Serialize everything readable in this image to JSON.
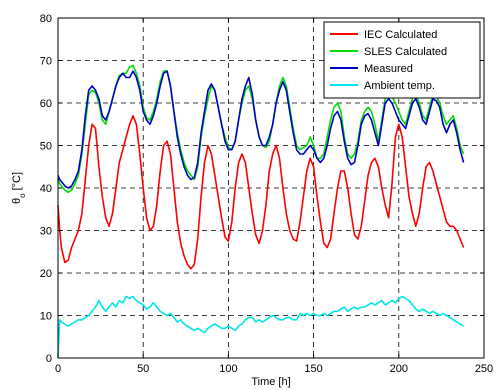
{
  "chart_data": {
    "type": "line",
    "xlabel": "Time [h]",
    "ylabel_main": "θ",
    "ylabel_sub": "o",
    "ylabel_unit": " [°C]",
    "xlim": [
      0,
      250
    ],
    "ylim": [
      0,
      80
    ],
    "xticks": [
      0,
      50,
      100,
      150,
      200,
      250
    ],
    "yticks": [
      0,
      10,
      20,
      30,
      40,
      50,
      60,
      70,
      80
    ],
    "grid": true,
    "legend_position": "top-right",
    "series": [
      {
        "name": "IEC Calculated",
        "color": "#ff0000",
        "x": [
          0,
          1,
          2,
          4,
          6,
          8,
          10,
          12,
          14,
          16,
          18,
          20,
          22,
          24,
          26,
          28,
          30,
          32,
          34,
          36,
          38,
          40,
          42,
          44,
          46,
          48,
          50,
          52,
          54,
          56,
          58,
          60,
          62,
          64,
          66,
          68,
          70,
          72,
          74,
          76,
          78,
          80,
          82,
          84,
          86,
          88,
          90,
          92,
          94,
          96,
          98,
          100,
          102,
          104,
          106,
          108,
          110,
          112,
          114,
          116,
          118,
          120,
          122,
          124,
          126,
          128,
          130,
          132,
          134,
          136,
          138,
          140,
          142,
          144,
          146,
          148,
          150,
          152,
          154,
          156,
          158,
          160,
          162,
          164,
          166,
          168,
          170,
          172,
          174,
          176,
          178,
          180,
          182,
          184,
          186,
          188,
          190,
          192,
          194,
          196,
          198,
          200,
          202,
          204,
          206,
          208,
          210,
          212,
          214,
          216,
          218,
          220,
          222,
          224,
          226,
          228,
          230,
          232,
          234,
          236,
          238
        ],
        "y": [
          36,
          30,
          26,
          22.5,
          23,
          26,
          28,
          30,
          34,
          42,
          50,
          55,
          54,
          45,
          38,
          33,
          31,
          34,
          40,
          46,
          49,
          52,
          55,
          57,
          55,
          48,
          40,
          33,
          30,
          31,
          36,
          44,
          50,
          51,
          48,
          40,
          32,
          27,
          24,
          22,
          21,
          22,
          28,
          38,
          46,
          50,
          48,
          43,
          38,
          33,
          28.5,
          27.5,
          32,
          40,
          46,
          48,
          46,
          40,
          34,
          29,
          27,
          30,
          36,
          44,
          48,
          50,
          47,
          40,
          34,
          30,
          28,
          27.5,
          32,
          38,
          44,
          47,
          45,
          38,
          32,
          27,
          26,
          28,
          34,
          40,
          44,
          44,
          40,
          34,
          29,
          28,
          31,
          37,
          43,
          46,
          47,
          45,
          40,
          36,
          33,
          41,
          52,
          55,
          52,
          45,
          38,
          34,
          31,
          34,
          40,
          45,
          46,
          44,
          41,
          38,
          35,
          32,
          31,
          31,
          30,
          28,
          26
        ]
      },
      {
        "name": "SLES Calculated",
        "color": "#00dd00",
        "x": [
          0,
          1,
          2,
          4,
          6,
          8,
          10,
          12,
          14,
          16,
          18,
          20,
          22,
          24,
          26,
          28,
          30,
          32,
          34,
          36,
          38,
          40,
          42,
          44,
          46,
          48,
          50,
          52,
          54,
          56,
          58,
          60,
          62,
          64,
          66,
          68,
          70,
          72,
          74,
          76,
          78,
          80,
          82,
          84,
          86,
          88,
          90,
          92,
          94,
          96,
          98,
          100,
          102,
          104,
          106,
          108,
          110,
          112,
          114,
          116,
          118,
          120,
          122,
          124,
          126,
          128,
          130,
          132,
          134,
          136,
          138,
          140,
          142,
          144,
          146,
          148,
          150,
          152,
          154,
          156,
          158,
          160,
          162,
          164,
          166,
          168,
          170,
          172,
          174,
          176,
          178,
          180,
          182,
          184,
          186,
          188,
          190,
          192,
          194,
          196,
          198,
          200,
          202,
          204,
          206,
          208,
          210,
          212,
          214,
          216,
          218,
          220,
          222,
          224,
          226,
          228,
          230,
          232,
          234,
          236,
          238
        ],
        "y": [
          42,
          41,
          40.5,
          39.5,
          39,
          39.5,
          41,
          43,
          48,
          55,
          62,
          63,
          62.5,
          60,
          56,
          55,
          58,
          61,
          64,
          66.5,
          67,
          67,
          68.5,
          68.8,
          67,
          64,
          59,
          56.5,
          56,
          58,
          61,
          65,
          67.5,
          67.5,
          64,
          58,
          53,
          49,
          46,
          44,
          43,
          42,
          45,
          52,
          57,
          61,
          64,
          63,
          59,
          55,
          52,
          49.5,
          49,
          51,
          56,
          60,
          63,
          64,
          61,
          56,
          52,
          50,
          49.5,
          51,
          55,
          60,
          64,
          66,
          64,
          59,
          54,
          50,
          49,
          49.5,
          50,
          52,
          50,
          47,
          47,
          48,
          52,
          56,
          59,
          60,
          58,
          52,
          48,
          47,
          48,
          51,
          56,
          58,
          59,
          58,
          55,
          51,
          56,
          61,
          62,
          61.5,
          60,
          58,
          56,
          55,
          58,
          61,
          62,
          60,
          57,
          56,
          59,
          62,
          61.5,
          60,
          57,
          55,
          56,
          57,
          54,
          50,
          48
        ]
      },
      {
        "name": "Measured",
        "color": "#0000cc",
        "x": [
          0,
          1,
          2,
          4,
          6,
          8,
          10,
          12,
          14,
          16,
          18,
          20,
          22,
          24,
          26,
          28,
          30,
          32,
          34,
          36,
          38,
          40,
          42,
          44,
          46,
          48,
          50,
          52,
          54,
          56,
          58,
          60,
          62,
          64,
          66,
          68,
          70,
          72,
          74,
          76,
          78,
          80,
          82,
          84,
          86,
          88,
          90,
          92,
          94,
          96,
          98,
          100,
          102,
          104,
          106,
          108,
          110,
          112,
          114,
          116,
          118,
          120,
          122,
          124,
          126,
          128,
          130,
          132,
          134,
          136,
          138,
          140,
          142,
          144,
          146,
          148,
          150,
          152,
          154,
          156,
          158,
          160,
          162,
          164,
          166,
          168,
          170,
          172,
          174,
          176,
          178,
          180,
          182,
          184,
          186,
          188,
          190,
          192,
          194,
          196,
          198,
          200,
          202,
          204,
          206,
          208,
          210,
          212,
          214,
          216,
          218,
          220,
          222,
          224,
          226,
          228,
          230,
          232,
          234,
          236,
          238
        ],
        "y": [
          43,
          42,
          41.5,
          40.5,
          40,
          40.5,
          42,
          44,
          49,
          57,
          63,
          64,
          63,
          61,
          57,
          56,
          58,
          61,
          64,
          66,
          67,
          66,
          66,
          67.5,
          66,
          63,
          58,
          56,
          55,
          57,
          60,
          64,
          67,
          67.5,
          64,
          58,
          52,
          48,
          45,
          43,
          42,
          42.5,
          46,
          53,
          58,
          63,
          64.5,
          63,
          59,
          55,
          51,
          49,
          49,
          51,
          56,
          61,
          64,
          66,
          62,
          56,
          52,
          50,
          50,
          52,
          55,
          60,
          63,
          65,
          63,
          58,
          53,
          49,
          48,
          48,
          49,
          50,
          49,
          47,
          46,
          47,
          50,
          54,
          57,
          58,
          56,
          51,
          47,
          45.5,
          46,
          50,
          55,
          57,
          57.5,
          56,
          53,
          50,
          55,
          60,
          61,
          60,
          58,
          56,
          55,
          54,
          57,
          60,
          61,
          59,
          56,
          55,
          58,
          61,
          60.5,
          59,
          55,
          53,
          55,
          56,
          53,
          49,
          46
        ]
      },
      {
        "name": "Ambient temp.",
        "color": "#00e5e5",
        "x": [
          0,
          1,
          2,
          4,
          6,
          8,
          10,
          12,
          14,
          16,
          18,
          20,
          22,
          24,
          26,
          28,
          30,
          32,
          34,
          36,
          38,
          40,
          42,
          44,
          46,
          48,
          50,
          52,
          54,
          56,
          58,
          60,
          62,
          64,
          66,
          68,
          70,
          72,
          74,
          76,
          78,
          80,
          82,
          84,
          86,
          88,
          90,
          92,
          94,
          96,
          98,
          100,
          102,
          104,
          106,
          108,
          110,
          112,
          114,
          116,
          118,
          120,
          122,
          124,
          126,
          128,
          130,
          132,
          134,
          136,
          138,
          140,
          142,
          144,
          146,
          148,
          150,
          152,
          154,
          156,
          158,
          160,
          162,
          164,
          166,
          168,
          170,
          172,
          174,
          176,
          178,
          180,
          182,
          184,
          186,
          188,
          190,
          192,
          194,
          196,
          198,
          200,
          202,
          204,
          206,
          208,
          210,
          212,
          214,
          216,
          218,
          220,
          222,
          224,
          226,
          228,
          230,
          232,
          234,
          236,
          238
        ],
        "y": [
          0,
          9,
          8.5,
          8,
          7.5,
          8,
          8.5,
          9,
          9,
          9.5,
          10,
          11,
          12,
          13.5,
          12,
          11,
          12,
          13,
          12,
          13.5,
          13,
          14.5,
          14,
          14.5,
          13.5,
          13,
          12.5,
          11.5,
          12,
          13,
          12,
          11,
          10.5,
          10,
          10.5,
          9.5,
          8.5,
          9,
          8,
          7.5,
          7,
          6.5,
          7,
          6.5,
          6,
          7,
          7.5,
          8,
          7.5,
          7,
          7,
          7.5,
          7,
          6.5,
          7.5,
          8,
          9,
          9.5,
          9.5,
          8.5,
          9,
          8.5,
          9,
          9.5,
          10,
          9.5,
          9,
          9,
          9.5,
          9.5,
          9,
          9,
          10.5,
          10,
          10.5,
          10,
          10.5,
          10,
          10,
          10.5,
          10,
          10.5,
          11,
          11,
          11.5,
          12,
          11,
          11.5,
          12,
          11.5,
          12,
          12,
          12.5,
          13,
          12.5,
          13,
          13.5,
          12.5,
          13,
          13.5,
          13,
          14,
          14.5,
          14,
          13.5,
          12.5,
          11.5,
          11,
          11.5,
          11,
          10.5,
          11,
          10.5,
          10,
          10.5,
          10,
          9.5,
          9,
          8.5,
          8,
          7.5
        ]
      }
    ]
  }
}
